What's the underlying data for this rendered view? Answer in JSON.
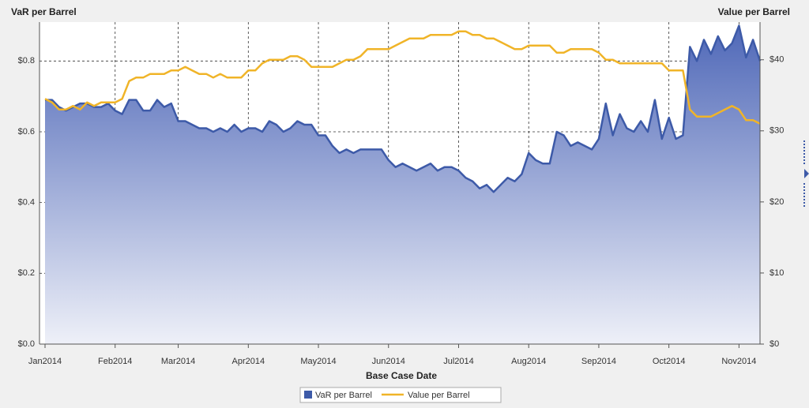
{
  "chart_data": {
    "type": "area-line",
    "y_label": "VaR per Barrel",
    "y2_label": "Value per Barrel",
    "x_label": "Base Case Date",
    "categories": [
      "Jan2014",
      null,
      null,
      null,
      null,
      null,
      null,
      null,
      null,
      null,
      "Feb2014",
      null,
      null,
      null,
      null,
      null,
      null,
      null,
      null,
      "Mar2014",
      null,
      null,
      null,
      null,
      null,
      null,
      null,
      null,
      null,
      "Apr2014",
      null,
      null,
      null,
      null,
      null,
      null,
      null,
      null,
      null,
      "May2014",
      null,
      null,
      null,
      null,
      null,
      null,
      null,
      null,
      null,
      "Jun2014",
      null,
      null,
      null,
      null,
      null,
      null,
      null,
      null,
      null,
      "Jul2014",
      null,
      null,
      null,
      null,
      null,
      null,
      null,
      null,
      null,
      "Aug2014",
      null,
      null,
      null,
      null,
      null,
      null,
      null,
      null,
      null,
      "Sep2014",
      null,
      null,
      null,
      null,
      null,
      null,
      null,
      null,
      null,
      "Oct2014",
      null,
      null,
      null,
      null,
      null,
      null,
      null,
      null,
      null,
      "Nov2014",
      null,
      null,
      null
    ],
    "series": [
      {
        "name": "VaR per Barrel",
        "color": "#3d5aa8",
        "values": [
          0.69,
          0.69,
          0.67,
          0.66,
          0.67,
          0.68,
          0.68,
          0.67,
          0.67,
          0.68,
          0.66,
          0.65,
          0.69,
          0.69,
          0.66,
          0.66,
          0.69,
          0.67,
          0.68,
          0.63,
          0.63,
          0.62,
          0.61,
          0.61,
          0.6,
          0.61,
          0.6,
          0.62,
          0.6,
          0.61,
          0.61,
          0.6,
          0.63,
          0.62,
          0.6,
          0.61,
          0.63,
          0.62,
          0.62,
          0.59,
          0.59,
          0.56,
          0.54,
          0.55,
          0.54,
          0.55,
          0.55,
          0.55,
          0.55,
          0.52,
          0.5,
          0.51,
          0.5,
          0.49,
          0.5,
          0.51,
          0.49,
          0.5,
          0.5,
          0.49,
          0.47,
          0.46,
          0.44,
          0.45,
          0.43,
          0.45,
          0.47,
          0.46,
          0.48,
          0.54,
          0.52,
          0.51,
          0.51,
          0.6,
          0.59,
          0.56,
          0.57,
          0.56,
          0.55,
          0.58,
          0.68,
          0.59,
          0.65,
          0.61,
          0.6,
          0.63,
          0.6,
          0.69,
          0.58,
          0.64,
          0.58,
          0.59,
          0.84,
          0.8,
          0.86,
          0.82,
          0.87,
          0.83,
          0.85,
          0.9,
          0.81,
          0.86,
          0.8
        ]
      },
      {
        "name": "Value per Barrel",
        "color": "#f0b428",
        "axis": "y2",
        "values": [
          34.5,
          34,
          33,
          33,
          33.5,
          33,
          34,
          33.5,
          34,
          34,
          34,
          34.5,
          37,
          37.5,
          37.5,
          38,
          38,
          38,
          38.5,
          38.5,
          39,
          38.5,
          38,
          38,
          37.5,
          38,
          37.5,
          37.5,
          37.5,
          38.5,
          38.5,
          39.5,
          40,
          40,
          40,
          40.5,
          40.5,
          40,
          39,
          39,
          39,
          39,
          39.5,
          40,
          40,
          40.5,
          41.5,
          41.5,
          41.5,
          41.5,
          42,
          42.5,
          43,
          43,
          43,
          43.5,
          43.5,
          43.5,
          43.5,
          44,
          44,
          43.5,
          43.5,
          43,
          43,
          42.5,
          42,
          41.5,
          41.5,
          42,
          42,
          42,
          42,
          41,
          41,
          41.5,
          41.5,
          41.5,
          41.5,
          41,
          40,
          40,
          39.5,
          39.5,
          39.5,
          39.5,
          39.5,
          39.5,
          39.5,
          38.5,
          38.5,
          38.5,
          33,
          32,
          32,
          32,
          32.5,
          33,
          33.5,
          33,
          31.5,
          31.5,
          31
        ]
      }
    ],
    "ylim": [
      0,
      0.91
    ],
    "yticks": [
      {
        "value": 0,
        "label": "$0.0"
      },
      {
        "value": 0.2,
        "label": "$0.2"
      },
      {
        "value": 0.4,
        "label": "$0.4"
      },
      {
        "value": 0.6,
        "label": "$0.6"
      },
      {
        "value": 0.8,
        "label": "$0.8"
      }
    ],
    "y2lim": [
      0,
      45.3
    ],
    "y2ticks": [
      {
        "value": 0,
        "label": "$0"
      },
      {
        "value": 10,
        "label": "$10"
      },
      {
        "value": 20,
        "label": "$20"
      },
      {
        "value": 30,
        "label": "$30"
      },
      {
        "value": 40,
        "label": "$40"
      }
    ],
    "grid": true,
    "legend": "bottom"
  }
}
